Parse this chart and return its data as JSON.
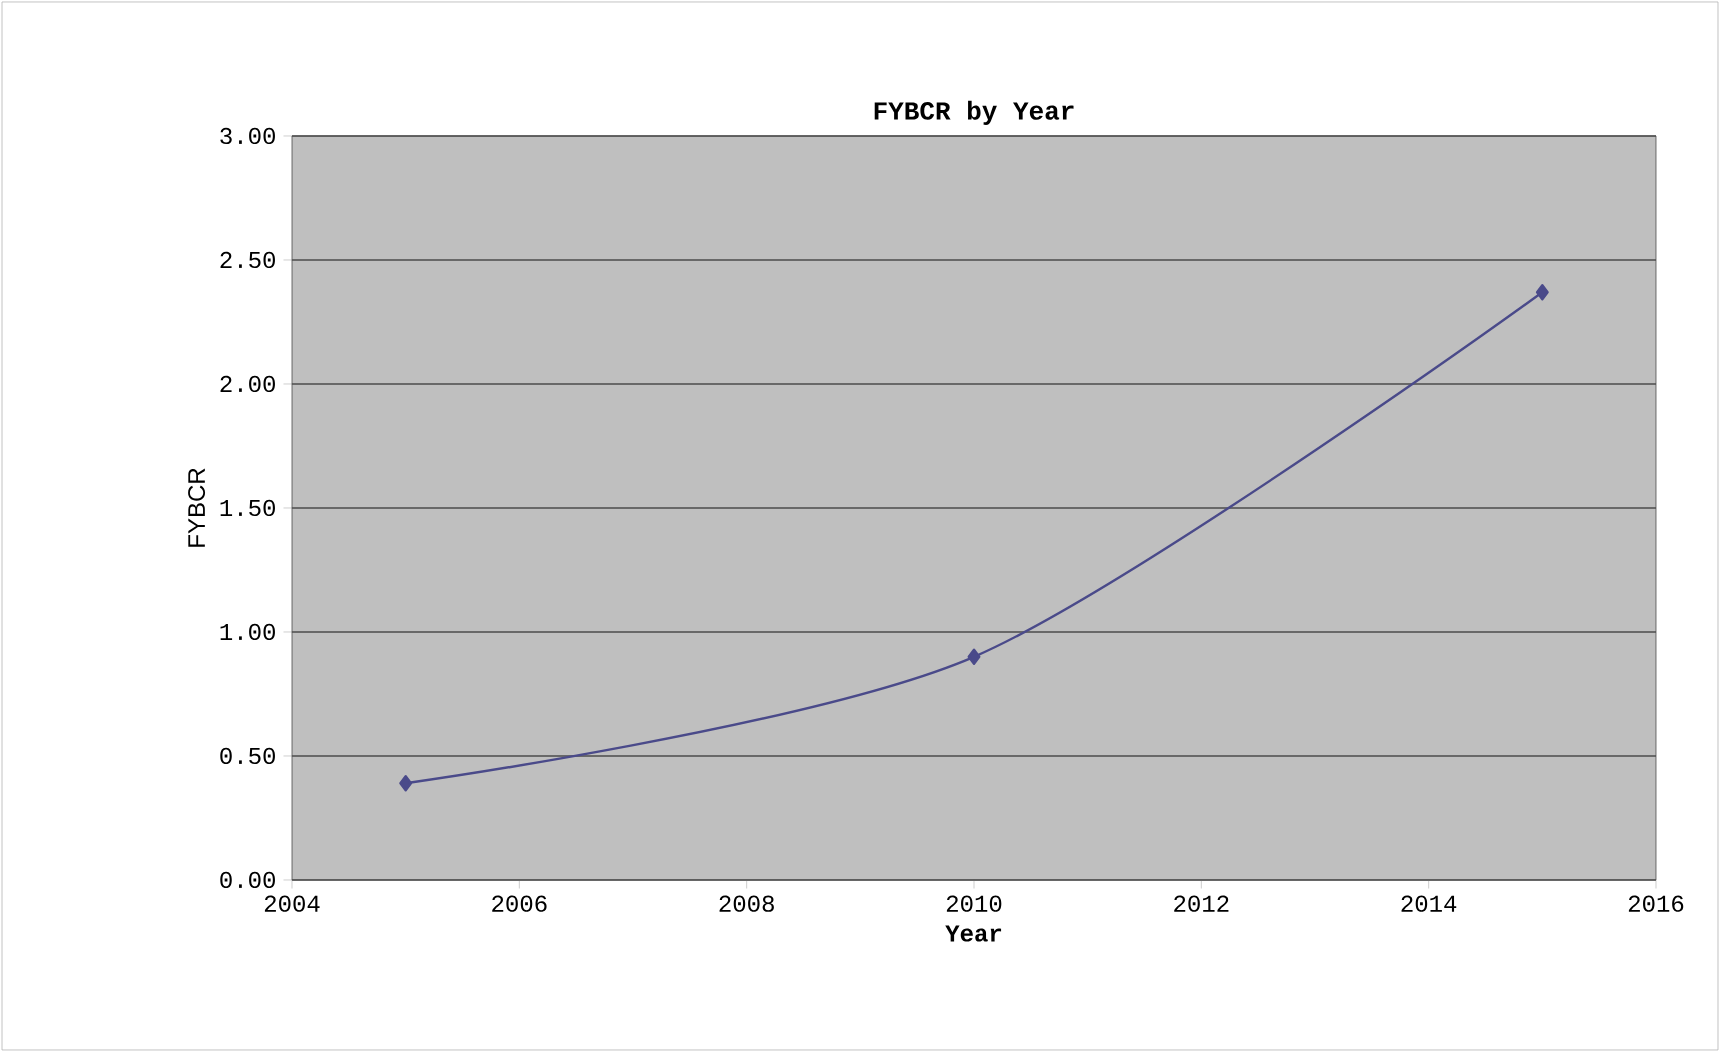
{
  "chart_data": {
    "type": "line",
    "title": "FYBCR by Year",
    "xlabel": "Year",
    "ylabel": "FYBCR",
    "x": [
      2005,
      2010,
      2015
    ],
    "series": [
      {
        "color": "#4a4a8a",
        "values": [
          0.39,
          0.9,
          2.37
        ]
      }
    ],
    "xlim": [
      2004,
      2016
    ],
    "xticks": [
      2004,
      2006,
      2008,
      2010,
      2012,
      2014,
      2016
    ],
    "ylim": [
      0,
      3
    ],
    "yticks": [
      {
        "value": 0,
        "label": "0.00"
      },
      {
        "value": 0.5,
        "label": "0.50"
      },
      {
        "value": 1,
        "label": "1.00"
      },
      {
        "value": 1.5,
        "label": "1.50"
      },
      {
        "value": 2,
        "label": "2.00"
      },
      {
        "value": 2.5,
        "label": "2.50"
      },
      {
        "value": 3,
        "label": "3.00"
      }
    ],
    "grid": "y",
    "marker": "diamond",
    "line_style": "solid"
  }
}
